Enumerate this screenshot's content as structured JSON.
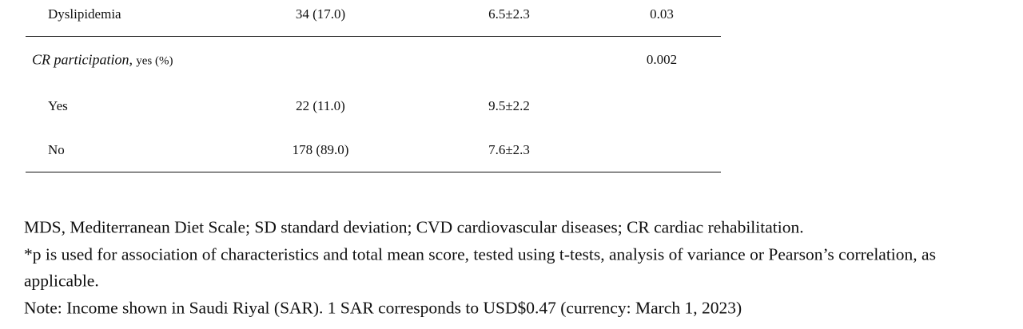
{
  "table": {
    "rows": [
      [
        "Dyslipidemia",
        "34 (17.0)",
        "6.5±2.3",
        "0.03"
      ],
      [
        {
          "italic": "CR participation,",
          "plain": "yes (%)"
        },
        "",
        "",
        "0.002"
      ],
      [
        "Yes",
        "22 (11.0)",
        "9.5±2.2",
        ""
      ],
      [
        "No",
        "178 (89.0)",
        "7.6±2.3",
        ""
      ]
    ]
  },
  "footnotes": [
    "MDS, Mediterranean Diet Scale; SD standard deviation; CVD cardiovascular diseases; CR cardiac rehabilitation.",
    "*p is used for association of characteristics and total mean score, tested using t-tests, analysis of variance or Pearson’s correlation, as",
    "applicable.",
    "Note: Income shown in Saudi Riyal (SAR). 1 SAR corresponds to USD$0.47 (currency: March 1, 2023)"
  ]
}
